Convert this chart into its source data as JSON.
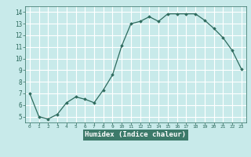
{
  "x": [
    0,
    1,
    2,
    3,
    4,
    5,
    6,
    7,
    8,
    9,
    10,
    11,
    12,
    13,
    14,
    15,
    16,
    17,
    18,
    19,
    20,
    21,
    22,
    23
  ],
  "y": [
    7.0,
    5.0,
    4.8,
    5.2,
    6.2,
    6.7,
    6.5,
    6.2,
    7.3,
    8.6,
    11.1,
    13.0,
    13.2,
    13.6,
    13.2,
    13.85,
    13.85,
    13.85,
    13.85,
    13.3,
    12.6,
    11.8,
    10.7,
    9.1
  ],
  "xlabel": "Humidex (Indice chaleur)",
  "ylim": [
    4.5,
    14.5
  ],
  "xlim": [
    -0.5,
    23.5
  ],
  "yticks": [
    5,
    6,
    7,
    8,
    9,
    10,
    11,
    12,
    13,
    14
  ],
  "xticks": [
    0,
    1,
    2,
    3,
    4,
    5,
    6,
    7,
    8,
    9,
    10,
    11,
    12,
    13,
    14,
    15,
    16,
    17,
    18,
    19,
    20,
    21,
    22,
    23
  ],
  "line_color": "#2e6b5e",
  "marker": "D",
  "marker_size": 1.8,
  "bg_color": "#c8eaea",
  "grid_color": "#ffffff",
  "bottom_bar_color": "#3d7a6a",
  "tick_color": "#2e6b5e"
}
